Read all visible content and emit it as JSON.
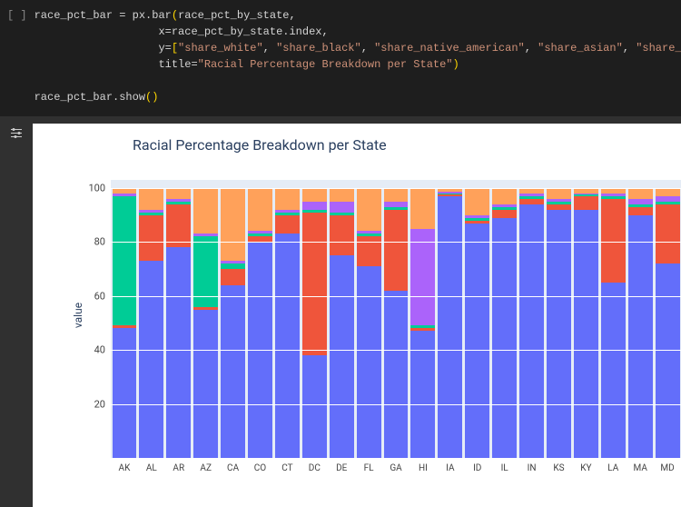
{
  "code": {
    "bracket": "[ ]",
    "line1_var": "race_pct_bar",
    "line1_op": " = ",
    "line1_call": "px.bar",
    "line1_arg": "race_pct_by_state,",
    "line2_kw": "x=",
    "line2_val": "race_pct_by_state.index,",
    "line3_kw": "y=",
    "line3_br_open": "[",
    "line3_s1": "\"share_white\"",
    "line3_s2": "\"share_black\"",
    "line3_s3": "\"share_native_american\"",
    "line3_s4": "\"share_asian\"",
    "line3_s5": "\"share_hispanic\"",
    "line3_br_close": "],",
    "line4_kw": "title=",
    "line4_str": "\"Racial Percentage Breakdown per State\"",
    "line4_close": ")",
    "line5_var": "race_pct_bar",
    "line5_call": ".show",
    "line5_paren": "()"
  },
  "chart": {
    "title": "Racial Percentage Breakdown per State",
    "ylabel": "value",
    "ylim": [
      0,
      103
    ],
    "yticks": [
      20,
      40,
      60,
      80,
      100
    ],
    "background_color": "#e5ecf6",
    "grid_color": "#ffffff",
    "title_fontsize": 16,
    "tick_fontsize": 11,
    "series_colors": {
      "share_white": "#636efa",
      "share_black": "#ef553b",
      "share_native_american": "#00cc96",
      "share_asian": "#ab63fa",
      "share_hispanic": "#ffa15a"
    },
    "states": [
      {
        "code": "AK",
        "white": 48,
        "black": 1,
        "native": 48,
        "asian": 1,
        "hispanic": 2
      },
      {
        "code": "AL",
        "white": 73,
        "black": 17,
        "native": 1,
        "asian": 1,
        "hispanic": 8
      },
      {
        "code": "AR",
        "white": 78,
        "black": 16,
        "native": 1,
        "asian": 1,
        "hispanic": 4
      },
      {
        "code": "AZ",
        "white": 55,
        "black": 1,
        "native": 26,
        "asian": 1,
        "hispanic": 17
      },
      {
        "code": "CA",
        "white": 64,
        "black": 6,
        "native": 2,
        "asian": 1,
        "hispanic": 27
      },
      {
        "code": "CO",
        "white": 80,
        "black": 2,
        "native": 1,
        "asian": 1,
        "hispanic": 16
      },
      {
        "code": "CT",
        "white": 83,
        "black": 7,
        "native": 1,
        "asian": 1,
        "hispanic": 8
      },
      {
        "code": "DC",
        "white": 38,
        "black": 53,
        "native": 1,
        "asian": 3,
        "hispanic": 5
      },
      {
        "code": "DE",
        "white": 75,
        "black": 15,
        "native": 1,
        "asian": 4,
        "hispanic": 5
      },
      {
        "code": "FL",
        "white": 71,
        "black": 11,
        "native": 1,
        "asian": 1,
        "hispanic": 16
      },
      {
        "code": "GA",
        "white": 62,
        "black": 30,
        "native": 1,
        "asian": 2,
        "hispanic": 5
      },
      {
        "code": "HI",
        "white": 47,
        "black": 1,
        "native": 1,
        "asian": 36,
        "hispanic": 15
      },
      {
        "code": "IA",
        "white": 97,
        "black": 0.5,
        "native": 0.5,
        "asian": 0.5,
        "hispanic": 1.5
      },
      {
        "code": "ID",
        "white": 87,
        "black": 1,
        "native": 1,
        "asian": 1,
        "hispanic": 10
      },
      {
        "code": "IL",
        "white": 89,
        "black": 3,
        "native": 1,
        "asian": 1,
        "hispanic": 6
      },
      {
        "code": "IN",
        "white": 94,
        "black": 2,
        "native": 1,
        "asian": 1,
        "hispanic": 2
      },
      {
        "code": "KS",
        "white": 92,
        "black": 2,
        "native": 1,
        "asian": 1,
        "hispanic": 4
      },
      {
        "code": "KY",
        "white": 92,
        "black": 5,
        "native": 0.5,
        "asian": 0.5,
        "hispanic": 2
      },
      {
        "code": "LA",
        "white": 65,
        "black": 31,
        "native": 1,
        "asian": 1,
        "hispanic": 2
      },
      {
        "code": "MA",
        "white": 90,
        "black": 3,
        "native": 1,
        "asian": 2,
        "hispanic": 4
      },
      {
        "code": "MD",
        "white": 72,
        "black": 22,
        "native": 1,
        "asian": 2,
        "hispanic": 3
      }
    ]
  }
}
